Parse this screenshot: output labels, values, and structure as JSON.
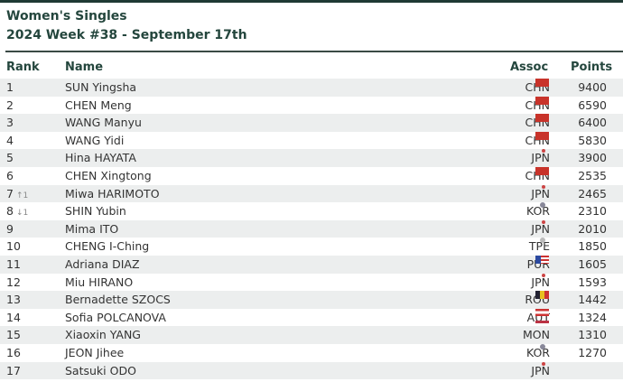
{
  "title": "Women's Singles",
  "subtitle": "2024 Week #38 - September 17th",
  "columns": {
    "rank": "Rank",
    "name": "Name",
    "assoc": "Assoc",
    "points": "Points"
  },
  "rows": [
    {
      "rank": "1",
      "move": "",
      "name": "SUN Yingsha",
      "assoc": "CHN",
      "flag": "chn",
      "points": "9400"
    },
    {
      "rank": "2",
      "move": "",
      "name": "CHEN Meng",
      "assoc": "CHN",
      "flag": "chn",
      "points": "6590"
    },
    {
      "rank": "3",
      "move": "",
      "name": "WANG Manyu",
      "assoc": "CHN",
      "flag": "chn",
      "points": "6400"
    },
    {
      "rank": "4",
      "move": "",
      "name": "WANG Yidi",
      "assoc": "CHN",
      "flag": "chn",
      "points": "5830"
    },
    {
      "rank": "5",
      "move": "",
      "name": "Hina HAYATA",
      "assoc": "JPN",
      "flag": "jpn",
      "points": "3900"
    },
    {
      "rank": "6",
      "move": "",
      "name": "CHEN Xingtong",
      "assoc": "CHN",
      "flag": "chn",
      "points": "2535"
    },
    {
      "rank": "7",
      "move": "↑1",
      "name": "Miwa HARIMOTO",
      "assoc": "JPN",
      "flag": "jpn",
      "points": "2465"
    },
    {
      "rank": "8",
      "move": "↓1",
      "name": "SHIN Yubin",
      "assoc": "KOR",
      "flag": "kor",
      "points": "2310"
    },
    {
      "rank": "9",
      "move": "",
      "name": "Mima ITO",
      "assoc": "JPN",
      "flag": "jpn",
      "points": "2010"
    },
    {
      "rank": "10",
      "move": "",
      "name": "CHENG I-Ching",
      "assoc": "TPE",
      "flag": "tpe",
      "points": "1850"
    },
    {
      "rank": "11",
      "move": "",
      "name": "Adriana DIAZ",
      "assoc": "PUR",
      "flag": "pur",
      "points": "1605"
    },
    {
      "rank": "12",
      "move": "",
      "name": "Miu HIRANO",
      "assoc": "JPN",
      "flag": "jpn",
      "points": "1593"
    },
    {
      "rank": "13",
      "move": "",
      "name": "Bernadette SZOCS",
      "assoc": "ROU",
      "flag": "rou",
      "points": "1442"
    },
    {
      "rank": "14",
      "move": "",
      "name": "Sofia POLCANOVA",
      "assoc": "AUT",
      "flag": "aut",
      "points": "1324"
    },
    {
      "rank": "15",
      "move": "",
      "name": "Xiaoxin YANG",
      "assoc": "MON",
      "flag": "mon",
      "points": "1310"
    },
    {
      "rank": "16",
      "move": "",
      "name": "JEON Jihee",
      "assoc": "KOR",
      "flag": "kor",
      "points": "1270"
    },
    {
      "rank": "17",
      "move": "",
      "name": "Satsuki ODO",
      "assoc": "JPN",
      "flag": "jpn",
      "points": ""
    }
  ],
  "colors": {
    "header_text": "#24463d",
    "stripe": "#eceeee",
    "top_bar": "#1f3a34"
  }
}
